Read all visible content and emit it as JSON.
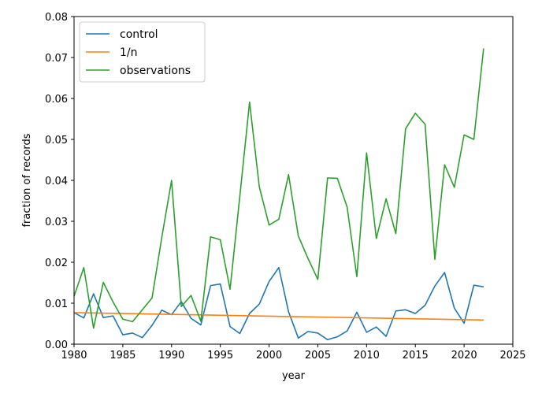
{
  "chart_data": {
    "type": "line",
    "title": "",
    "xlabel": "year",
    "ylabel": "fraction of records",
    "xlim": [
      1980,
      2025
    ],
    "ylim": [
      0,
      0.08
    ],
    "xticks": [
      1980,
      1985,
      1990,
      1995,
      2000,
      2005,
      2010,
      2015,
      2020,
      2025
    ],
    "xtick_labels": [
      "1980",
      "1985",
      "1990",
      "1995",
      "2000",
      "2005",
      "2010",
      "2015",
      "2020",
      "2025"
    ],
    "yticks": [
      0,
      0.01,
      0.02,
      0.03,
      0.04,
      0.05,
      0.06,
      0.07,
      0.08
    ],
    "ytick_labels": [
      "0.00",
      "0.01",
      "0.02",
      "0.03",
      "0.04",
      "0.05",
      "0.06",
      "0.07",
      "0.08"
    ],
    "grid": false,
    "legend_position": "top-left",
    "series": [
      {
        "name": "control",
        "color": "#1f77b4",
        "x": [
          1980,
          1981,
          1982,
          1983,
          1984,
          1985,
          1986,
          1987,
          1988,
          1989,
          1990,
          1991,
          1992,
          1993,
          1994,
          1995,
          1996,
          1997,
          1998,
          1999,
          2000,
          2001,
          2002,
          2003,
          2004,
          2005,
          2006,
          2007,
          2008,
          2009,
          2010,
          2011,
          2012,
          2013,
          2014,
          2015,
          2016,
          2017,
          2018,
          2019,
          2020,
          2021,
          2022
        ],
        "y": [
          0.0077,
          0.0064,
          0.0123,
          0.0065,
          0.0069,
          0.0023,
          0.0027,
          0.0016,
          0.0046,
          0.0083,
          0.0072,
          0.0104,
          0.0063,
          0.0047,
          0.0143,
          0.0147,
          0.0043,
          0.0026,
          0.0075,
          0.0098,
          0.0153,
          0.0187,
          0.0079,
          0.0015,
          0.0031,
          0.0027,
          0.0011,
          0.0018,
          0.0032,
          0.0078,
          0.0029,
          0.0042,
          0.0019,
          0.0081,
          0.0084,
          0.0075,
          0.0095,
          0.0142,
          0.0175,
          0.0088,
          0.0051,
          0.0144,
          0.014
        ]
      },
      {
        "name": "1/n",
        "color": "#ff7f0e",
        "x": [
          1980,
          2022
        ],
        "y": [
          0.0077,
          0.0059
        ]
      },
      {
        "name": "observations",
        "color": "#2ca02c",
        "x": [
          1980,
          1981,
          1982,
          1983,
          1984,
          1985,
          1986,
          1987,
          1988,
          1989,
          1990,
          1991,
          1992,
          1993,
          1994,
          1995,
          1996,
          1997,
          1998,
          1999,
          2000,
          2001,
          2002,
          2003,
          2004,
          2005,
          2006,
          2007,
          2008,
          2009,
          2010,
          2011,
          2012,
          2013,
          2014,
          2015,
          2016,
          2017,
          2018,
          2019,
          2020,
          2021,
          2022
        ],
        "y": [
          0.0117,
          0.0187,
          0.0039,
          0.0151,
          0.0103,
          0.0061,
          0.0055,
          0.0084,
          0.0113,
          0.0261,
          0.04,
          0.0092,
          0.0119,
          0.0056,
          0.0262,
          0.0255,
          0.0134,
          0.0361,
          0.0591,
          0.0384,
          0.0291,
          0.0305,
          0.0414,
          0.0264,
          0.0209,
          0.0158,
          0.0406,
          0.0405,
          0.0335,
          0.0165,
          0.0467,
          0.0258,
          0.0355,
          0.027,
          0.0526,
          0.0564,
          0.0537,
          0.0207,
          0.0438,
          0.0383,
          0.0511,
          0.05,
          0.0722
        ]
      }
    ]
  }
}
